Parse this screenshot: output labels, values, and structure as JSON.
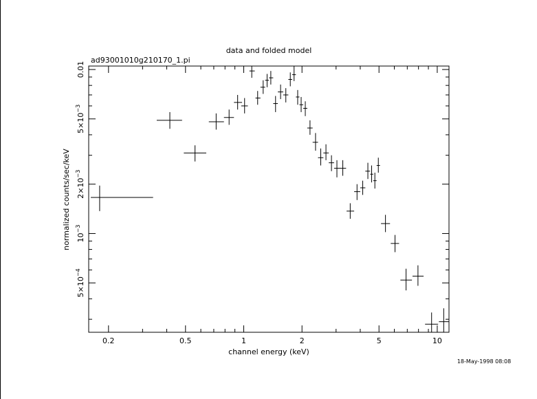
{
  "chart_data": {
    "type": "scatter",
    "title": "data and folded model",
    "subtitle": "ad93001010g210170_1.pi",
    "xlabel": "channel energy (keV)",
    "ylabel": "normalized counts/sec/keV",
    "timestamp": "18-May-1998 08:08",
    "x_scale": "log",
    "y_scale": "log",
    "xlim": [
      0.158,
      11.5
    ],
    "ylim": [
      0.00025,
      0.0105
    ],
    "x_tick_labels": [
      {
        "value": 0.2,
        "label": "0.2"
      },
      {
        "value": 0.5,
        "label": "0.5"
      },
      {
        "value": 1,
        "label": "1"
      },
      {
        "value": 2,
        "label": "2"
      },
      {
        "value": 5,
        "label": "5"
      },
      {
        "value": 10,
        "label": "10"
      }
    ],
    "y_tick_labels": [
      {
        "value": 0.0005,
        "mant": "5×10",
        "exp": "−4"
      },
      {
        "value": 0.001,
        "mant": "10",
        "exp": "−3"
      },
      {
        "value": 0.002,
        "mant": "2×10",
        "exp": "−3"
      },
      {
        "value": 0.005,
        "mant": "5×10",
        "exp": "−3"
      },
      {
        "value": 0.01,
        "mant": "0.01",
        "exp": ""
      }
    ],
    "series": [
      {
        "points": [
          {
            "x": 0.18,
            "xlo": 0.162,
            "xhi": 0.34,
            "y": 0.00166,
            "ylo": 0.00137,
            "yhi": 0.00196
          },
          {
            "x": 0.415,
            "xlo": 0.355,
            "xhi": 0.48,
            "y": 0.0049,
            "ylo": 0.00435,
            "yhi": 0.0055
          },
          {
            "x": 0.56,
            "xlo": 0.49,
            "xhi": 0.64,
            "y": 0.0031,
            "ylo": 0.00275,
            "yhi": 0.00345
          },
          {
            "x": 0.72,
            "xlo": 0.66,
            "xhi": 0.79,
            "y": 0.0048,
            "ylo": 0.0043,
            "yhi": 0.0054
          },
          {
            "x": 0.84,
            "xlo": 0.79,
            "xhi": 0.89,
            "y": 0.0051,
            "ylo": 0.0046,
            "yhi": 0.0057
          },
          {
            "x": 0.93,
            "xlo": 0.89,
            "xhi": 0.98,
            "y": 0.0063,
            "ylo": 0.0057,
            "yhi": 0.007
          },
          {
            "x": 1.01,
            "xlo": 0.97,
            "xhi": 1.05,
            "y": 0.006,
            "ylo": 0.0054,
            "yhi": 0.0067
          },
          {
            "x": 1.1,
            "xlo": 1.07,
            "xhi": 1.14,
            "y": 0.0098,
            "ylo": 0.0089,
            "yhi": 0.0105
          },
          {
            "x": 1.18,
            "xlo": 1.15,
            "xhi": 1.22,
            "y": 0.0067,
            "ylo": 0.0061,
            "yhi": 0.0074
          },
          {
            "x": 1.26,
            "xlo": 1.22,
            "xhi": 1.29,
            "y": 0.0078,
            "ylo": 0.0071,
            "yhi": 0.0086
          },
          {
            "x": 1.32,
            "xlo": 1.29,
            "xhi": 1.35,
            "y": 0.0086,
            "ylo": 0.0078,
            "yhi": 0.0094
          },
          {
            "x": 1.38,
            "xlo": 1.35,
            "xhi": 1.42,
            "y": 0.0089,
            "ylo": 0.0081,
            "yhi": 0.0098
          },
          {
            "x": 1.46,
            "xlo": 1.42,
            "xhi": 1.5,
            "y": 0.0062,
            "ylo": 0.0055,
            "yhi": 0.0069
          },
          {
            "x": 1.55,
            "xlo": 1.5,
            "xhi": 1.6,
            "y": 0.0073,
            "ylo": 0.0066,
            "yhi": 0.0081
          },
          {
            "x": 1.65,
            "xlo": 1.6,
            "xhi": 1.7,
            "y": 0.007,
            "ylo": 0.0063,
            "yhi": 0.0077
          },
          {
            "x": 1.74,
            "xlo": 1.7,
            "xhi": 1.78,
            "y": 0.0087,
            "ylo": 0.0079,
            "yhi": 0.0096
          },
          {
            "x": 1.82,
            "xlo": 1.78,
            "xhi": 1.86,
            "y": 0.0093,
            "ylo": 0.0085,
            "yhi": 0.0105
          },
          {
            "x": 1.9,
            "xlo": 1.86,
            "xhi": 1.94,
            "y": 0.0068,
            "ylo": 0.0061,
            "yhi": 0.0075
          },
          {
            "x": 1.98,
            "xlo": 1.94,
            "xhi": 2.03,
            "y": 0.0061,
            "ylo": 0.0055,
            "yhi": 0.0068
          },
          {
            "x": 2.08,
            "xlo": 2.03,
            "xhi": 2.13,
            "y": 0.0058,
            "ylo": 0.0052,
            "yhi": 0.0064
          },
          {
            "x": 2.2,
            "xlo": 2.13,
            "xhi": 2.27,
            "y": 0.0044,
            "ylo": 0.004,
            "yhi": 0.0049
          },
          {
            "x": 2.35,
            "xlo": 2.27,
            "xhi": 2.42,
            "y": 0.0036,
            "ylo": 0.0032,
            "yhi": 0.0041
          },
          {
            "x": 2.5,
            "xlo": 2.42,
            "xhi": 2.58,
            "y": 0.0029,
            "ylo": 0.0026,
            "yhi": 0.0033
          },
          {
            "x": 2.66,
            "xlo": 2.58,
            "xhi": 2.75,
            "y": 0.0031,
            "ylo": 0.0028,
            "yhi": 0.0035
          },
          {
            "x": 2.84,
            "xlo": 2.75,
            "xhi": 2.93,
            "y": 0.0027,
            "ylo": 0.0024,
            "yhi": 0.003
          },
          {
            "x": 3.03,
            "xlo": 2.93,
            "xhi": 3.13,
            "y": 0.0025,
            "ylo": 0.0022,
            "yhi": 0.0028
          },
          {
            "x": 3.25,
            "xlo": 3.13,
            "xhi": 3.38,
            "y": 0.0025,
            "ylo": 0.00225,
            "yhi": 0.0028
          },
          {
            "x": 3.55,
            "xlo": 3.4,
            "xhi": 3.72,
            "y": 0.00137,
            "ylo": 0.00123,
            "yhi": 0.00153
          },
          {
            "x": 3.85,
            "xlo": 3.72,
            "xhi": 4.0,
            "y": 0.0018,
            "ylo": 0.0016,
            "yhi": 0.002
          },
          {
            "x": 4.12,
            "xlo": 4.0,
            "xhi": 4.25,
            "y": 0.0019,
            "ylo": 0.00172,
            "yhi": 0.0021
          },
          {
            "x": 4.38,
            "xlo": 4.25,
            "xhi": 4.5,
            "y": 0.0024,
            "ylo": 0.00215,
            "yhi": 0.0027
          },
          {
            "x": 4.58,
            "xlo": 4.5,
            "xhi": 4.67,
            "y": 0.0023,
            "ylo": 0.00205,
            "yhi": 0.0026
          },
          {
            "x": 4.76,
            "xlo": 4.67,
            "xhi": 4.86,
            "y": 0.0021,
            "ylo": 0.00188,
            "yhi": 0.00235
          },
          {
            "x": 4.96,
            "xlo": 4.86,
            "xhi": 5.06,
            "y": 0.0026,
            "ylo": 0.00235,
            "yhi": 0.0029
          },
          {
            "x": 5.4,
            "xlo": 5.12,
            "xhi": 5.7,
            "y": 0.00115,
            "ylo": 0.00102,
            "yhi": 0.0013
          },
          {
            "x": 6.05,
            "xlo": 5.75,
            "xhi": 6.35,
            "y": 0.00087,
            "ylo": 0.00077,
            "yhi": 0.00098
          },
          {
            "x": 6.9,
            "xlo": 6.45,
            "xhi": 7.4,
            "y": 0.00052,
            "ylo": 0.00045,
            "yhi": 0.00061
          },
          {
            "x": 7.95,
            "xlo": 7.45,
            "xhi": 8.5,
            "y": 0.00055,
            "ylo": 0.00048,
            "yhi": 0.00064
          },
          {
            "x": 9.35,
            "xlo": 8.65,
            "xhi": 10.1,
            "y": 0.00028,
            "ylo": 0.00024,
            "yhi": 0.00033
          },
          {
            "x": 10.8,
            "xlo": 10.2,
            "xhi": 11.5,
            "y": 0.00029,
            "ylo": 0.00025,
            "yhi": 0.00035
          }
        ]
      }
    ]
  }
}
